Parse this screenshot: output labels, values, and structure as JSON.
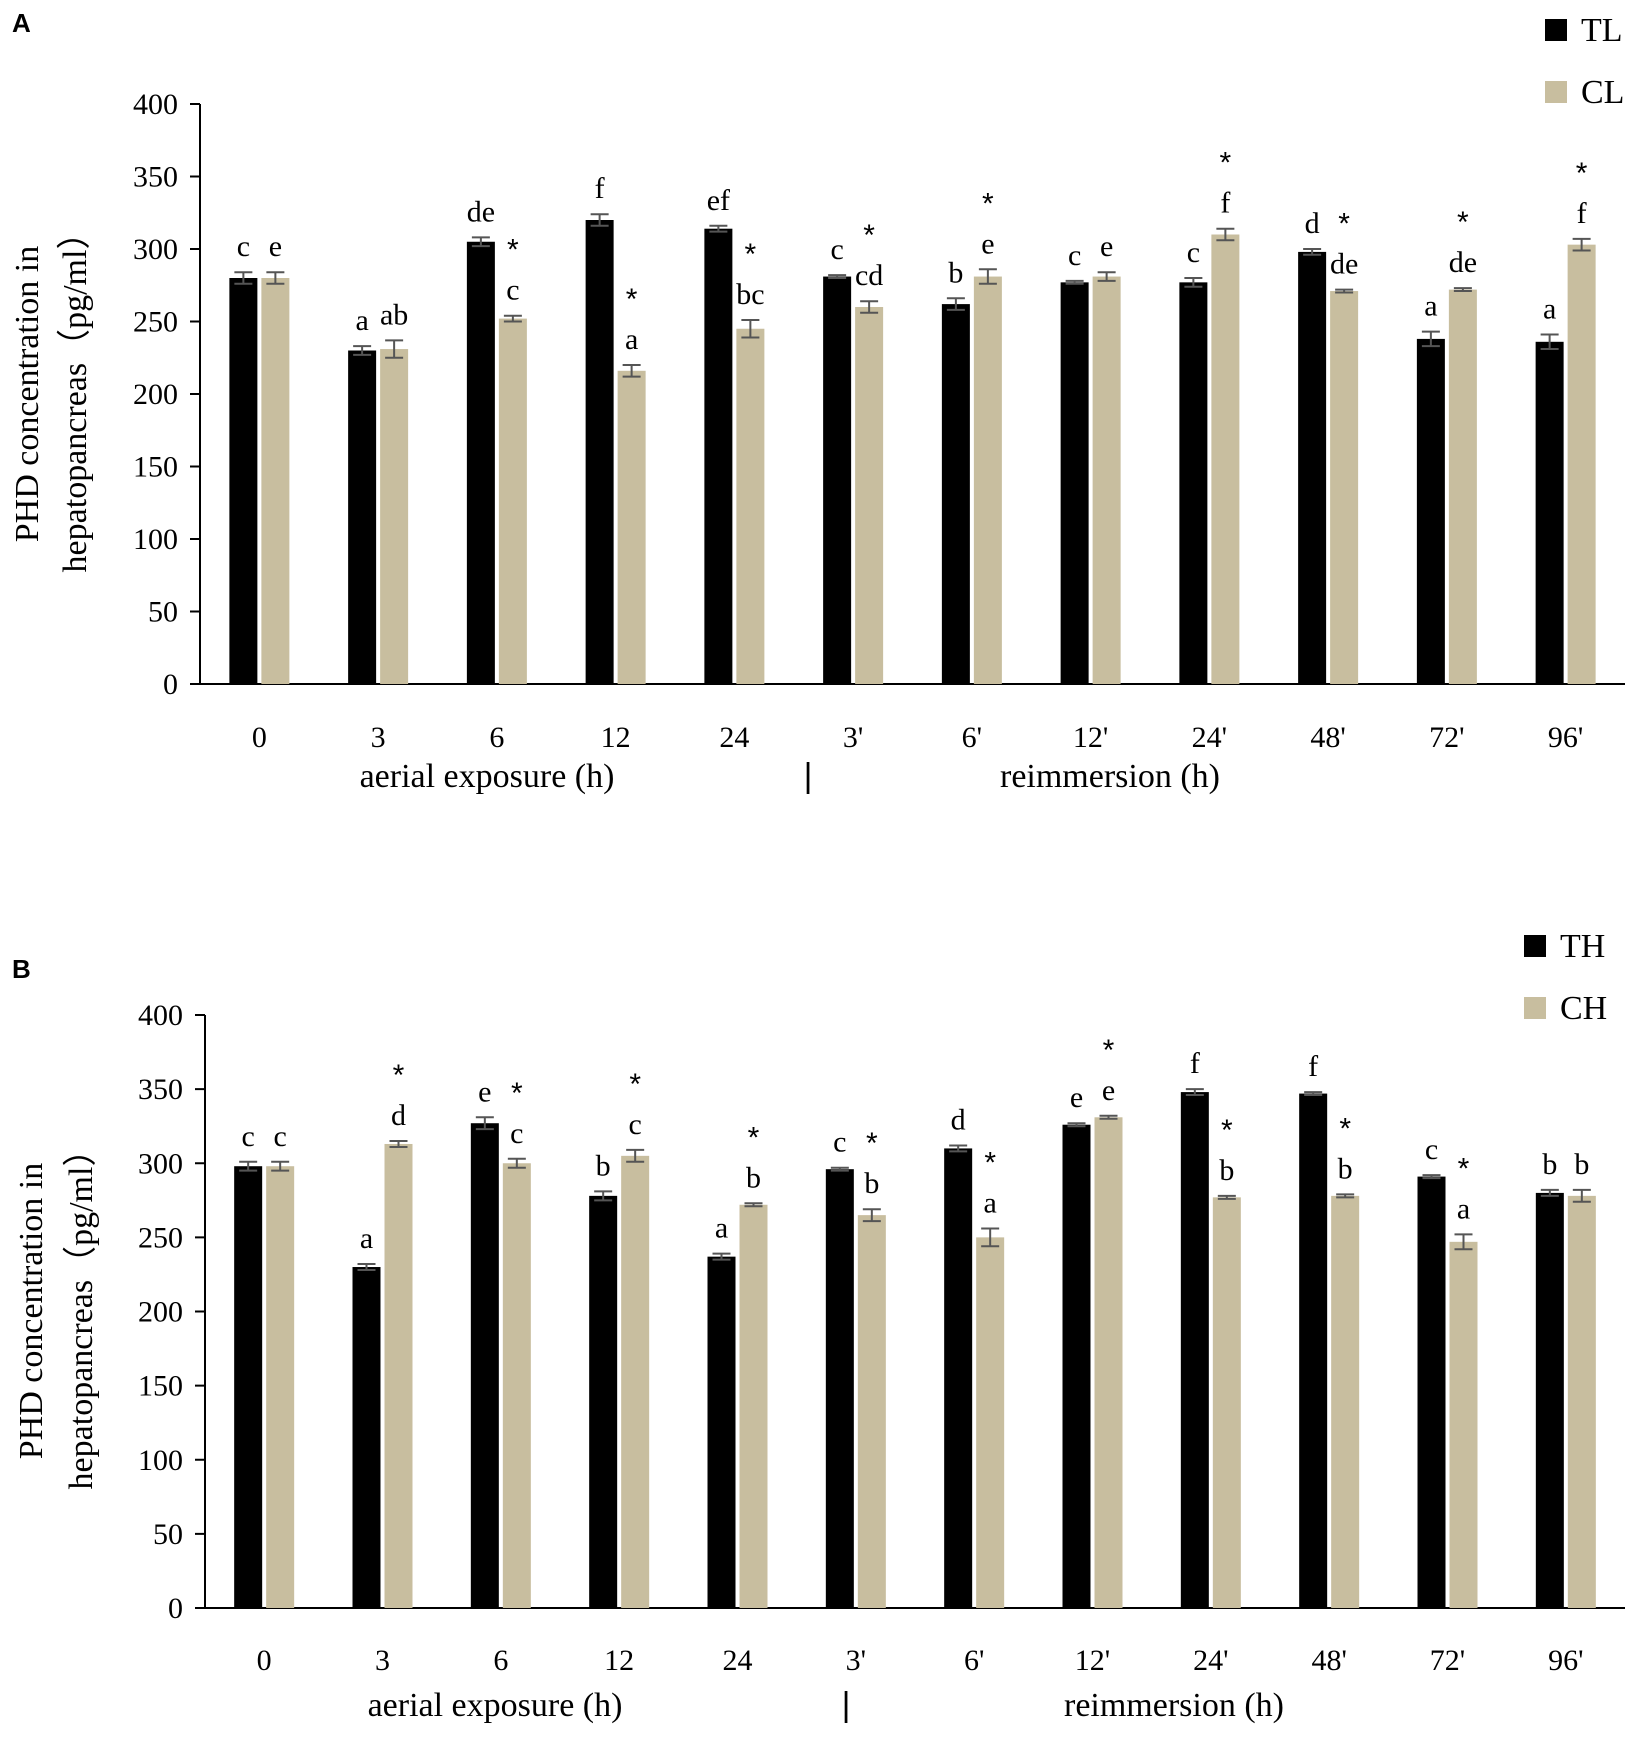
{
  "colors": {
    "dark": "#000000",
    "light": "#c8be9f",
    "axis": "#000000",
    "error": "#555555"
  },
  "chart_data": [
    {
      "type": "bar",
      "panel_label": "A",
      "categories": [
        "0",
        "3",
        "6",
        "12",
        "24",
        "3'",
        "6'",
        "12'",
        "24'",
        "48'",
        "72'",
        "96'"
      ],
      "group_labels": {
        "left": "aerial exposure (h)",
        "divider": "|",
        "right": "reimmersion (h)"
      },
      "ylabel_line1": "PHD concentration in",
      "ylabel_line2": "hepatopancreas（pg/ml）",
      "ylim": [
        0,
        400
      ],
      "yticks": [
        "0",
        "50",
        "100",
        "150",
        "200",
        "250",
        "300",
        "350",
        "400"
      ],
      "legend_position": "top-right",
      "series": [
        {
          "name": "TL",
          "values": [
            280,
            230,
            305,
            320,
            314,
            281,
            262,
            277,
            277,
            298,
            238,
            236
          ],
          "errors": [
            4,
            3,
            3,
            4,
            2,
            1,
            4,
            1,
            3,
            2,
            5,
            5
          ],
          "letters": [
            "c",
            "a",
            "de",
            "f",
            "ef",
            "c",
            "b",
            "c",
            "c",
            "d",
            "a",
            "a"
          ],
          "stars": [
            false,
            false,
            false,
            false,
            false,
            false,
            false,
            false,
            false,
            false,
            false,
            false
          ]
        },
        {
          "name": "CL",
          "values": [
            280,
            231,
            252,
            216,
            245,
            260,
            281,
            281,
            310,
            271,
            272,
            303
          ],
          "errors": [
            4,
            6,
            2,
            4,
            6,
            4,
            5,
            3,
            4,
            1,
            1,
            4
          ],
          "letters": [
            "e",
            "ab",
            "c",
            "a",
            "bc",
            "cd",
            "e",
            "e",
            "f",
            "de",
            "de",
            "f"
          ],
          "stars": [
            false,
            false,
            true,
            true,
            true,
            true,
            true,
            false,
            true,
            true,
            true,
            true
          ]
        }
      ]
    },
    {
      "type": "bar",
      "panel_label": "B",
      "categories": [
        "0",
        "3",
        "6",
        "12",
        "24",
        "3'",
        "6'",
        "12'",
        "24'",
        "48'",
        "72'",
        "96'"
      ],
      "group_labels": {
        "left": "aerial exposure (h)",
        "divider": "|",
        "right": "reimmersion (h)"
      },
      "ylabel_line1": "PHD concentration in",
      "ylabel_line2": "hepatopancreas（pg/ml）",
      "ylim": [
        0,
        400
      ],
      "yticks": [
        "0",
        "50",
        "100",
        "150",
        "200",
        "250",
        "300",
        "350",
        "400"
      ],
      "legend_position": "top-right",
      "series": [
        {
          "name": "TH",
          "values": [
            298,
            230,
            327,
            278,
            237,
            296,
            310,
            326,
            348,
            347,
            291,
            280
          ],
          "errors": [
            3,
            2,
            4,
            3,
            2,
            1,
            2,
            1,
            2,
            1,
            1,
            2
          ],
          "letters": [
            "c",
            "a",
            "e",
            "b",
            "a",
            "c",
            "d",
            "e",
            "f",
            "f",
            "c",
            "b"
          ],
          "stars": [
            false,
            false,
            false,
            false,
            false,
            false,
            false,
            false,
            false,
            false,
            false,
            false
          ]
        },
        {
          "name": "CH",
          "values": [
            298,
            313,
            300,
            305,
            272,
            265,
            250,
            331,
            277,
            278,
            247,
            278
          ],
          "errors": [
            3,
            2,
            3,
            4,
            1,
            4,
            6,
            1,
            1,
            1,
            5,
            4
          ],
          "letters": [
            "c",
            "d",
            "c",
            "c",
            "b",
            "b",
            "a",
            "e",
            "b",
            "b",
            "a",
            "b"
          ],
          "stars": [
            false,
            true,
            true,
            true,
            true,
            true,
            true,
            true,
            true,
            true,
            true,
            false
          ]
        }
      ]
    }
  ]
}
